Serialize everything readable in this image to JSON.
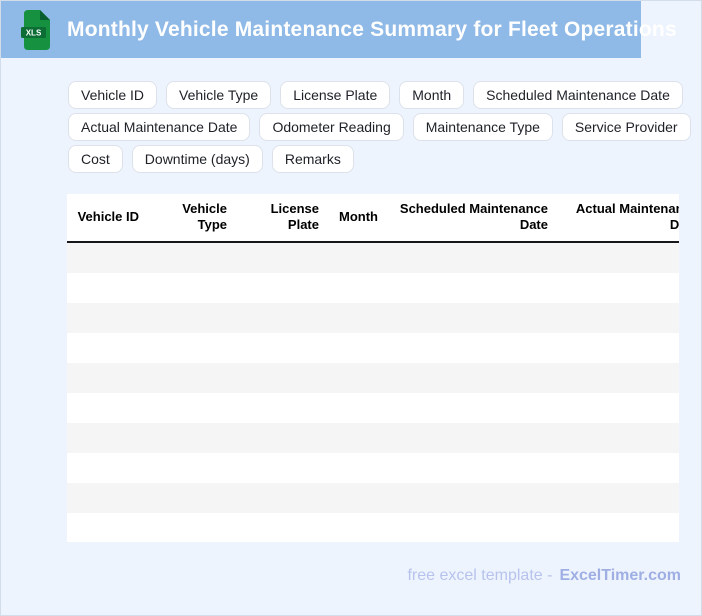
{
  "header": {
    "title": "Monthly Vehicle Maintenance Summary for Fleet Operations",
    "file_icon_label": "XLS"
  },
  "chips": {
    "rows": [
      [
        "Vehicle ID",
        "Vehicle Type",
        "License Plate",
        "Month",
        "Scheduled Maintenance Date"
      ],
      [
        "Actual Maintenance Date",
        "Odometer Reading",
        "Maintenance Type",
        "Service Provider"
      ],
      [
        "Cost",
        "Downtime (days)",
        "Remarks"
      ]
    ]
  },
  "table": {
    "columns": [
      "Vehicle ID",
      "Vehicle Type",
      "License Plate",
      "Month",
      "Scheduled Maintenance Date",
      "Actual Maintenance Date"
    ],
    "row_count": 10,
    "rows_empty": true
  },
  "footer": {
    "tagline": "free excel template -",
    "brand": "ExcelTimer.com"
  },
  "colors": {
    "page_bg": "#eef4fd",
    "page_border": "#d3dce9",
    "header_bar": "#8fb9e6",
    "chip_border": "#dde2ea",
    "stripe": "#f5f5f5",
    "footer_text": "#b7c3ed",
    "footer_brand": "#9fafe4",
    "icon_green": "#15913f",
    "icon_green_dark": "#0d6e35"
  }
}
